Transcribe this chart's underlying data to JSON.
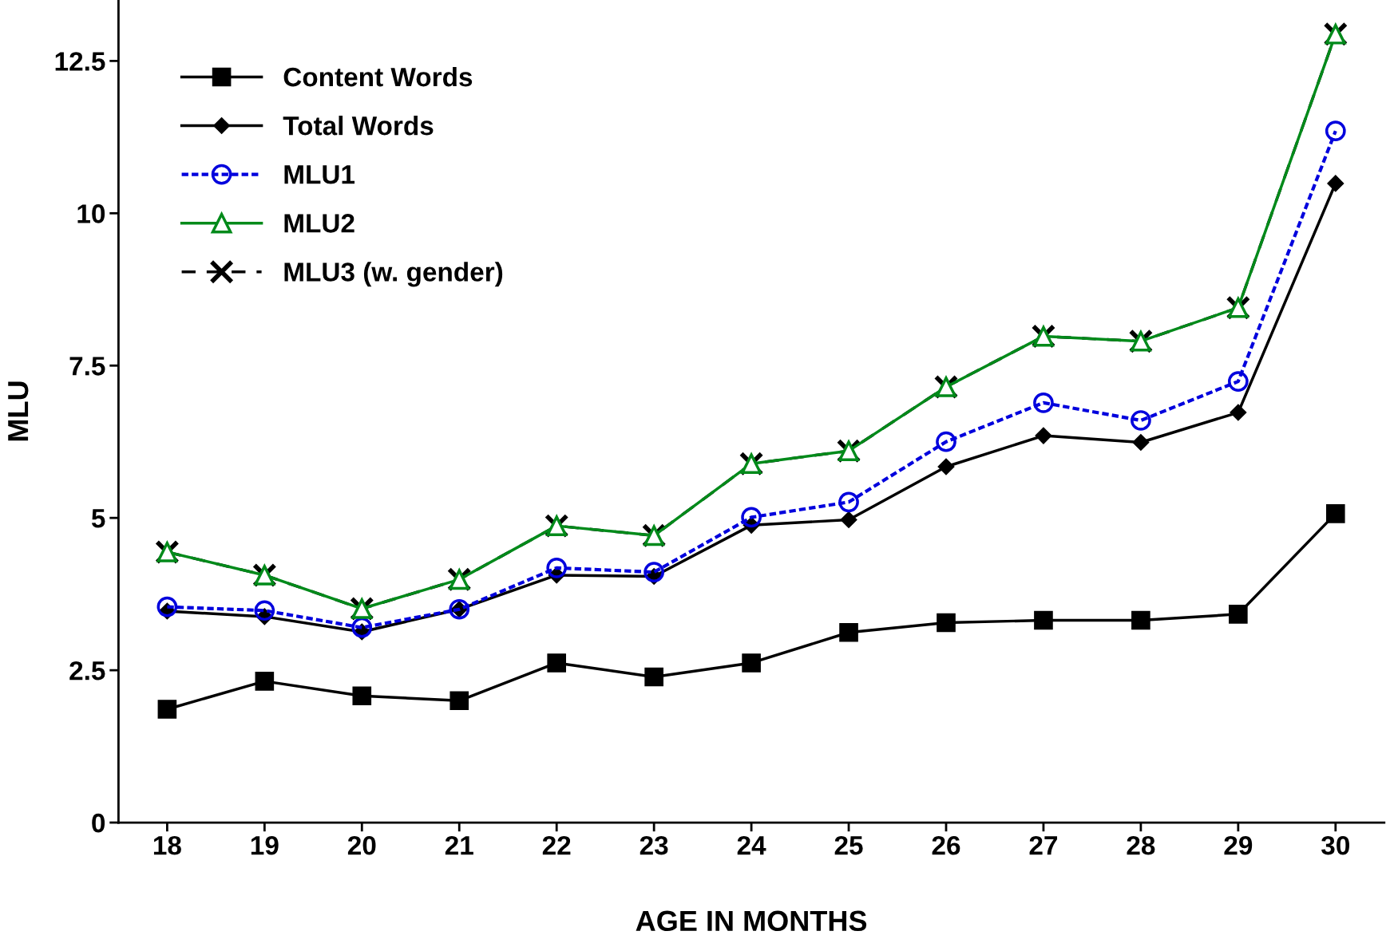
{
  "chart_data": {
    "type": "line",
    "xlabel": "AGE IN MONTHS",
    "ylabel": "MLU",
    "x": [
      18,
      19,
      20,
      21,
      22,
      23,
      24,
      25,
      26,
      27,
      28,
      29,
      30
    ],
    "xlim": [
      17.5,
      30.5
    ],
    "xticks": [
      18,
      19,
      20,
      21,
      22,
      23,
      24,
      25,
      26,
      27,
      28,
      29,
      30
    ],
    "ylim": [
      0,
      13.5
    ],
    "yticks": [
      0,
      2.5,
      5,
      7.5,
      10,
      12.5
    ],
    "grid": false,
    "legend": "top left",
    "series": [
      {
        "name": "Content Words",
        "color": "#000000",
        "marker": "square",
        "line_style": "solid",
        "values": [
          1.86,
          2.32,
          2.08,
          2.0,
          2.62,
          2.39,
          2.62,
          3.12,
          3.28,
          3.32,
          3.32,
          3.42,
          5.07
        ]
      },
      {
        "name": "Total Words",
        "color": "#000000",
        "marker": "diamond",
        "line_style": "solid",
        "values": [
          3.47,
          3.38,
          3.13,
          3.5,
          4.06,
          4.04,
          4.88,
          4.97,
          5.84,
          6.35,
          6.24,
          6.73,
          10.49
        ]
      },
      {
        "name": "MLU1",
        "color": "#0000dd",
        "marker": "circle",
        "line_style": "dotted",
        "values": [
          3.54,
          3.48,
          3.2,
          3.5,
          4.18,
          4.11,
          5.01,
          5.26,
          6.25,
          6.89,
          6.6,
          7.24,
          11.35
        ]
      },
      {
        "name": "MLU2",
        "color": "#008a1a",
        "marker": "triangle",
        "line_style": "solid",
        "values": [
          4.44,
          4.06,
          3.51,
          3.99,
          4.87,
          4.71,
          5.89,
          6.1,
          7.15,
          7.98,
          7.9,
          8.45,
          12.94
        ]
      },
      {
        "name": "MLU3 (w. gender)",
        "color": "#000000",
        "marker": "cross",
        "line_style": "dashed",
        "values": [
          4.44,
          4.06,
          3.51,
          3.99,
          4.87,
          4.71,
          5.89,
          6.1,
          7.15,
          7.98,
          7.9,
          8.45,
          12.94
        ]
      }
    ]
  }
}
